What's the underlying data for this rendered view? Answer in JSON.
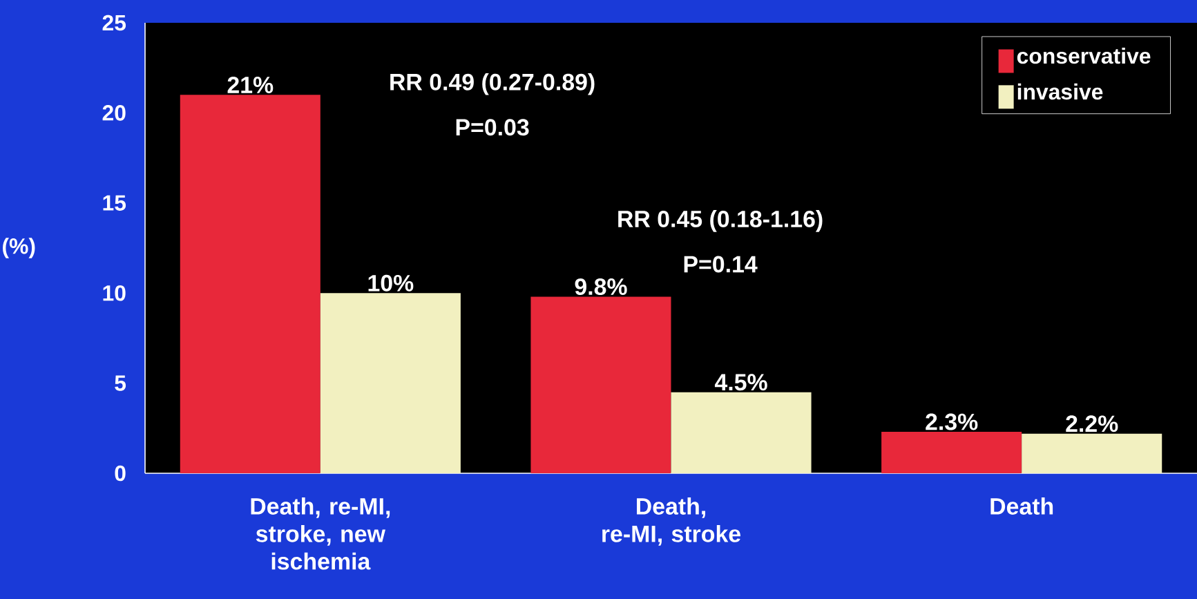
{
  "chart_data": {
    "type": "bar",
    "ylabel": "(%)",
    "categories": [
      "Death, re-MI, stroke, new ischemia",
      "Death, re-MI, stroke",
      "Death"
    ],
    "series": [
      {
        "name": "conservative",
        "color": "#e8283a",
        "values": [
          21,
          9.8,
          2.3
        ],
        "value_labels": [
          "21%",
          "9.8%",
          "2.3%"
        ]
      },
      {
        "name": "invasive",
        "color": "#f2f0c0",
        "values": [
          10,
          4.5,
          2.2
        ],
        "value_labels": [
          "10%",
          "4.5%",
          "2.2%"
        ]
      }
    ],
    "ylim": [
      0,
      25
    ],
    "yticks": [
      0,
      5,
      10,
      15,
      20,
      25
    ],
    "grid": false,
    "legend": "top right",
    "annotations": [
      "RR 0.49 (0.27-0.89)",
      "P=0.03",
      "RR 0.45 (0.18-1.16)",
      "P=0.14"
    ]
  }
}
